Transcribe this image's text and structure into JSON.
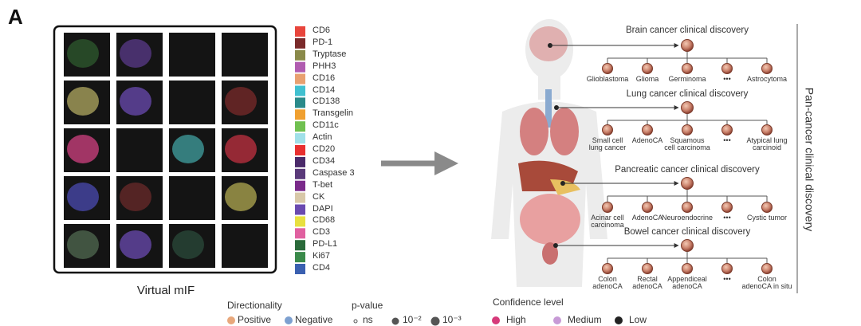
{
  "panel_label": "A",
  "markers": [
    {
      "name": "CD6",
      "color": "#e8453c"
    },
    {
      "name": "PD-1",
      "color": "#7a2a2a"
    },
    {
      "name": "Tryptase",
      "color": "#8a8a4a"
    },
    {
      "name": "PHH3",
      "color": "#b05cb0"
    },
    {
      "name": "CD16",
      "color": "#e8a070"
    },
    {
      "name": "CD14",
      "color": "#40c0d0"
    },
    {
      "name": "CD138",
      "color": "#2a8a8a"
    },
    {
      "name": "Transgelin",
      "color": "#f0a030"
    },
    {
      "name": "CD11c",
      "color": "#70c050"
    },
    {
      "name": "Actin",
      "color": "#a0e0e8"
    },
    {
      "name": "CD20",
      "color": "#e83030"
    },
    {
      "name": "CD34",
      "color": "#4a2a6a"
    },
    {
      "name": "Caspase 3",
      "color": "#5a3a7a"
    },
    {
      "name": "T-bet",
      "color": "#7a2a8a"
    },
    {
      "name": "CK",
      "color": "#d8c8a8"
    },
    {
      "name": "DAPI",
      "color": "#6a4ab0"
    },
    {
      "name": "CD68",
      "color": "#e8e040"
    },
    {
      "name": "CD3",
      "color": "#e060a0"
    },
    {
      "name": "PD-L1",
      "color": "#2a6a3a"
    },
    {
      "name": "Ki67",
      "color": "#3a8a4a"
    },
    {
      "name": "CD4",
      "color": "#3a60b0"
    }
  ],
  "mif_caption": "Virtual mIF",
  "side_label": "Pan-cancer clinical discovery",
  "sections": [
    {
      "title": "Brain cancer clinical discovery",
      "children": [
        "Glioblastoma",
        "Glioma",
        "Germinoma",
        "•••",
        "Astrocytoma"
      ]
    },
    {
      "title": "Lung cancer clinical discovery",
      "children": [
        "Small cell\nlung cancer",
        "AdenoCA",
        "Squamous\ncell carcinoma",
        "•••",
        "Atypical lung\ncarcinoid"
      ]
    },
    {
      "title": "Pancreatic cancer clinical discovery",
      "children": [
        "Acinar cell\ncarcinoma",
        "AdenoCA",
        "Neuroendocrine",
        "•••",
        "Cystic tumor"
      ]
    },
    {
      "title": "Bowel cancer clinical discovery",
      "children": [
        "Colon\nadenoCA",
        "Rectal\nadenoCA",
        "Appendiceal\nadenoCA",
        "•••",
        "Colon\nadenoCA in situ"
      ]
    }
  ],
  "legend": {
    "directionality": {
      "title": "Directionality",
      "items": [
        {
          "label": "Positive",
          "color": "#e8a87c"
        },
        {
          "label": "Negative",
          "color": "#7da0d0"
        }
      ]
    },
    "p_value": {
      "title": "p-value",
      "items": [
        "ns",
        "10⁻²",
        "10⁻³"
      ]
    },
    "confidence": {
      "title": "Confidence level",
      "items": [
        {
          "label": "High",
          "color": "#d63a7a"
        },
        {
          "label": "Medium",
          "color": "#c79ad6"
        },
        {
          "label": "Low",
          "color": "#222222"
        }
      ]
    }
  }
}
